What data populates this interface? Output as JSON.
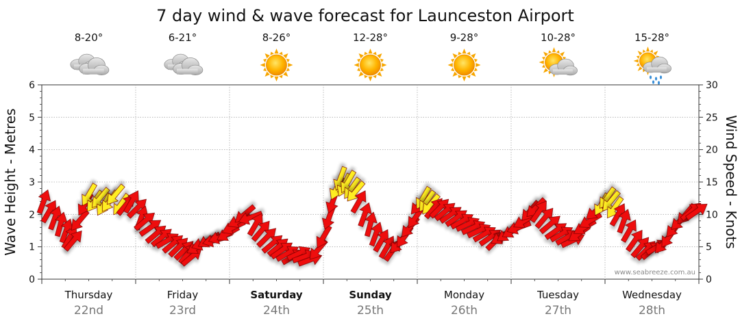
{
  "chart_data": {
    "type": "line",
    "title": "7 day wind & wave forecast for Launceston Airport",
    "ylabel_left": "Wave Height - Metres",
    "ylabel_right": "Wind Speed - Knots",
    "ylim_left": [
      0,
      6
    ],
    "ylim_right": [
      0,
      30
    ],
    "yticks_left": [
      "0",
      "1",
      "2",
      "3",
      "4",
      "5",
      "6"
    ],
    "yticks_right": [
      "0",
      "5",
      "10",
      "15",
      "20",
      "25",
      "30"
    ],
    "grid": "dotted",
    "watermark": "www.seabreeze.com.au",
    "days": [
      {
        "name": "Thursday",
        "date": "22nd",
        "temp": "8-20°",
        "icon": "cloudy-icon",
        "bold": false
      },
      {
        "name": "Friday",
        "date": "23rd",
        "temp": "6-21°",
        "icon": "cloudy-icon",
        "bold": false
      },
      {
        "name": "Saturday",
        "date": "24th",
        "temp": "8-26°",
        "icon": "sun-icon",
        "bold": true
      },
      {
        "name": "Sunday",
        "date": "25th",
        "temp": "12-28°",
        "icon": "sun-icon",
        "bold": true
      },
      {
        "name": "Monday",
        "date": "26th",
        "temp": "9-28°",
        "icon": "sun-icon",
        "bold": false
      },
      {
        "name": "Tuesday",
        "date": "27th",
        "temp": "10-28°",
        "icon": "partly-cloudy-icon",
        "bold": false
      },
      {
        "name": "Wednesday",
        "date": "28th",
        "temp": "15-28°",
        "icon": "showers-icon",
        "bold": false
      }
    ],
    "series": [
      {
        "name": "Wind Speed - Knots",
        "color_strong": "#ee1111",
        "color_light": "#ffee22",
        "x_unit": "day index (0 = Thursday 00:00, 7 = end of Wednesday)",
        "points": [
          {
            "t": 0.02,
            "v": 12.0,
            "dir": 200,
            "c": "red"
          },
          {
            "t": 0.08,
            "v": 10.5,
            "dir": 210,
            "c": "red"
          },
          {
            "t": 0.14,
            "v": 9.5,
            "dir": 200,
            "c": "red"
          },
          {
            "t": 0.2,
            "v": 8.5,
            "dir": 195,
            "c": "red"
          },
          {
            "t": 0.26,
            "v": 7.5,
            "dir": 200,
            "c": "red"
          },
          {
            "t": 0.3,
            "v": 6.5,
            "dir": 210,
            "c": "red"
          },
          {
            "t": 0.34,
            "v": 6.0,
            "dir": 220,
            "c": "red"
          },
          {
            "t": 0.4,
            "v": 9.0,
            "dir": 40,
            "c": "red"
          },
          {
            "t": 0.46,
            "v": 11.5,
            "dir": 30,
            "c": "red"
          },
          {
            "t": 0.5,
            "v": 13.0,
            "dir": 30,
            "c": "yellow"
          },
          {
            "t": 0.56,
            "v": 12.0,
            "dir": 35,
            "c": "yellow"
          },
          {
            "t": 0.62,
            "v": 12.5,
            "dir": 40,
            "c": "yellow"
          },
          {
            "t": 0.66,
            "v": 11.5,
            "dir": 30,
            "c": "yellow"
          },
          {
            "t": 0.72,
            "v": 12.0,
            "dir": 35,
            "c": "yellow"
          },
          {
            "t": 0.78,
            "v": 13.0,
            "dir": 40,
            "c": "yellow"
          },
          {
            "t": 0.84,
            "v": 11.5,
            "dir": 35,
            "c": "yellow"
          },
          {
            "t": 0.9,
            "v": 11.5,
            "dir": 220,
            "c": "red"
          },
          {
            "t": 0.96,
            "v": 12.0,
            "dir": 210,
            "c": "red"
          },
          {
            "t": 1.02,
            "v": 11.0,
            "dir": 225,
            "c": "red"
          },
          {
            "t": 1.06,
            "v": 9.5,
            "dir": 200,
            "c": "red"
          },
          {
            "t": 1.1,
            "v": 9.0,
            "dir": 230,
            "c": "red"
          },
          {
            "t": 1.16,
            "v": 8.0,
            "dir": 235,
            "c": "red"
          },
          {
            "t": 1.22,
            "v": 7.0,
            "dir": 230,
            "c": "red"
          },
          {
            "t": 1.28,
            "v": 6.5,
            "dir": 230,
            "c": "red"
          },
          {
            "t": 1.34,
            "v": 6.0,
            "dir": 240,
            "c": "red"
          },
          {
            "t": 1.4,
            "v": 5.5,
            "dir": 230,
            "c": "red"
          },
          {
            "t": 1.46,
            "v": 5.0,
            "dir": 225,
            "c": "red"
          },
          {
            "t": 1.52,
            "v": 4.5,
            "dir": 225,
            "c": "red"
          },
          {
            "t": 1.56,
            "v": 4.0,
            "dir": 220,
            "c": "red"
          },
          {
            "t": 1.6,
            "v": 3.5,
            "dir": 230,
            "c": "red"
          },
          {
            "t": 1.66,
            "v": 5.0,
            "dir": 60,
            "c": "red"
          },
          {
            "t": 1.72,
            "v": 5.5,
            "dir": 70,
            "c": "red"
          },
          {
            "t": 1.78,
            "v": 6.0,
            "dir": 60,
            "c": "red"
          },
          {
            "t": 1.84,
            "v": 6.0,
            "dir": 75,
            "c": "red"
          },
          {
            "t": 1.9,
            "v": 6.5,
            "dir": 70,
            "c": "red"
          },
          {
            "t": 1.98,
            "v": 7.0,
            "dir": 60,
            "c": "red"
          },
          {
            "t": 2.04,
            "v": 8.0,
            "dir": 65,
            "c": "red"
          },
          {
            "t": 2.1,
            "v": 9.0,
            "dir": 65,
            "c": "red"
          },
          {
            "t": 2.16,
            "v": 10.0,
            "dir": 50,
            "c": "red"
          },
          {
            "t": 2.22,
            "v": 9.5,
            "dir": 70,
            "c": "red"
          },
          {
            "t": 2.28,
            "v": 8.5,
            "dir": 210,
            "c": "red"
          },
          {
            "t": 2.34,
            "v": 7.5,
            "dir": 220,
            "c": "red"
          },
          {
            "t": 2.4,
            "v": 6.5,
            "dir": 225,
            "c": "red"
          },
          {
            "t": 2.46,
            "v": 5.5,
            "dir": 230,
            "c": "red"
          },
          {
            "t": 2.52,
            "v": 5.0,
            "dir": 230,
            "c": "red"
          },
          {
            "t": 2.56,
            "v": 4.5,
            "dir": 235,
            "c": "red"
          },
          {
            "t": 2.62,
            "v": 4.0,
            "dir": 240,
            "c": "red"
          },
          {
            "t": 2.68,
            "v": 3.5,
            "dir": 240,
            "c": "red"
          },
          {
            "t": 2.74,
            "v": 4.0,
            "dir": 245,
            "c": "red"
          },
          {
            "t": 2.8,
            "v": 3.5,
            "dir": 250,
            "c": "red"
          },
          {
            "t": 2.86,
            "v": 3.0,
            "dir": 250,
            "c": "red"
          },
          {
            "t": 2.94,
            "v": 4.5,
            "dir": 40,
            "c": "red"
          },
          {
            "t": 3.0,
            "v": 6.5,
            "dir": 30,
            "c": "red"
          },
          {
            "t": 3.06,
            "v": 9.5,
            "dir": 20,
            "c": "red"
          },
          {
            "t": 3.1,
            "v": 12.0,
            "dir": 20,
            "c": "red"
          },
          {
            "t": 3.14,
            "v": 14.0,
            "dir": 25,
            "c": "yellow"
          },
          {
            "t": 3.18,
            "v": 15.5,
            "dir": 20,
            "c": "yellow"
          },
          {
            "t": 3.22,
            "v": 14.5,
            "dir": 25,
            "c": "yellow"
          },
          {
            "t": 3.26,
            "v": 15.0,
            "dir": 30,
            "c": "yellow"
          },
          {
            "t": 3.3,
            "v": 14.0,
            "dir": 35,
            "c": "yellow"
          },
          {
            "t": 3.34,
            "v": 13.5,
            "dir": 40,
            "c": "yellow"
          },
          {
            "t": 3.38,
            "v": 12.0,
            "dir": 210,
            "c": "red"
          },
          {
            "t": 3.44,
            "v": 10.0,
            "dir": 200,
            "c": "red"
          },
          {
            "t": 3.5,
            "v": 8.5,
            "dir": 195,
            "c": "red"
          },
          {
            "t": 3.56,
            "v": 7.0,
            "dir": 200,
            "c": "red"
          },
          {
            "t": 3.62,
            "v": 6.0,
            "dir": 210,
            "c": "red"
          },
          {
            "t": 3.68,
            "v": 5.0,
            "dir": 210,
            "c": "red"
          },
          {
            "t": 3.74,
            "v": 4.5,
            "dir": 215,
            "c": "red"
          },
          {
            "t": 3.8,
            "v": 5.5,
            "dir": 40,
            "c": "red"
          },
          {
            "t": 3.86,
            "v": 6.5,
            "dir": 35,
            "c": "red"
          },
          {
            "t": 3.92,
            "v": 8.0,
            "dir": 40,
            "c": "red"
          },
          {
            "t": 3.98,
            "v": 9.5,
            "dir": 35,
            "c": "red"
          },
          {
            "t": 4.02,
            "v": 11.5,
            "dir": 40,
            "c": "red"
          },
          {
            "t": 4.06,
            "v": 12.5,
            "dir": 30,
            "c": "yellow"
          },
          {
            "t": 4.1,
            "v": 12.0,
            "dir": 35,
            "c": "yellow"
          },
          {
            "t": 4.14,
            "v": 11.5,
            "dir": 40,
            "c": "yellow"
          },
          {
            "t": 4.18,
            "v": 11.0,
            "dir": 220,
            "c": "red"
          },
          {
            "t": 4.24,
            "v": 11.0,
            "dir": 225,
            "c": "red"
          },
          {
            "t": 4.3,
            "v": 10.5,
            "dir": 230,
            "c": "red"
          },
          {
            "t": 4.36,
            "v": 10.0,
            "dir": 235,
            "c": "red"
          },
          {
            "t": 4.42,
            "v": 9.5,
            "dir": 235,
            "c": "red"
          },
          {
            "t": 4.48,
            "v": 9.0,
            "dir": 240,
            "c": "red"
          },
          {
            "t": 4.54,
            "v": 8.5,
            "dir": 245,
            "c": "red"
          },
          {
            "t": 4.6,
            "v": 8.0,
            "dir": 245,
            "c": "red"
          },
          {
            "t": 4.66,
            "v": 7.5,
            "dir": 245,
            "c": "red"
          },
          {
            "t": 4.72,
            "v": 7.0,
            "dir": 240,
            "c": "red"
          },
          {
            "t": 4.78,
            "v": 6.5,
            "dir": 235,
            "c": "red"
          },
          {
            "t": 4.84,
            "v": 6.0,
            "dir": 225,
            "c": "red"
          },
          {
            "t": 4.9,
            "v": 6.5,
            "dir": 60,
            "c": "red"
          },
          {
            "t": 4.96,
            "v": 7.0,
            "dir": 55,
            "c": "red"
          },
          {
            "t": 5.02,
            "v": 7.5,
            "dir": 60,
            "c": "red"
          },
          {
            "t": 5.08,
            "v": 8.0,
            "dir": 70,
            "c": "red"
          },
          {
            "t": 5.14,
            "v": 9.0,
            "dir": 60,
            "c": "red"
          },
          {
            "t": 5.2,
            "v": 10.5,
            "dir": 40,
            "c": "red"
          },
          {
            "t": 5.26,
            "v": 11.0,
            "dir": 45,
            "c": "red"
          },
          {
            "t": 5.3,
            "v": 10.5,
            "dir": 215,
            "c": "red"
          },
          {
            "t": 5.36,
            "v": 9.5,
            "dir": 220,
            "c": "red"
          },
          {
            "t": 5.42,
            "v": 8.5,
            "dir": 230,
            "c": "red"
          },
          {
            "t": 5.48,
            "v": 7.5,
            "dir": 235,
            "c": "red"
          },
          {
            "t": 5.54,
            "v": 7.0,
            "dir": 240,
            "c": "red"
          },
          {
            "t": 5.6,
            "v": 6.5,
            "dir": 240,
            "c": "red"
          },
          {
            "t": 5.66,
            "v": 6.0,
            "dir": 245,
            "c": "red"
          },
          {
            "t": 5.72,
            "v": 7.0,
            "dir": 55,
            "c": "red"
          },
          {
            "t": 5.78,
            "v": 8.0,
            "dir": 60,
            "c": "red"
          },
          {
            "t": 5.84,
            "v": 9.0,
            "dir": 60,
            "c": "red"
          },
          {
            "t": 5.9,
            "v": 10.5,
            "dir": 50,
            "c": "red"
          },
          {
            "t": 5.96,
            "v": 11.5,
            "dir": 30,
            "c": "yellow"
          },
          {
            "t": 6.02,
            "v": 12.5,
            "dir": 35,
            "c": "yellow"
          },
          {
            "t": 6.06,
            "v": 12.0,
            "dir": 40,
            "c": "yellow"
          },
          {
            "t": 6.1,
            "v": 11.0,
            "dir": 35,
            "c": "yellow"
          },
          {
            "t": 6.14,
            "v": 10.0,
            "dir": 210,
            "c": "red"
          },
          {
            "t": 6.2,
            "v": 9.0,
            "dir": 200,
            "c": "red"
          },
          {
            "t": 6.26,
            "v": 7.5,
            "dir": 210,
            "c": "red"
          },
          {
            "t": 6.32,
            "v": 6.0,
            "dir": 215,
            "c": "red"
          },
          {
            "t": 6.38,
            "v": 5.0,
            "dir": 220,
            "c": "red"
          },
          {
            "t": 6.44,
            "v": 4.5,
            "dir": 225,
            "c": "red"
          },
          {
            "t": 6.5,
            "v": 4.5,
            "dir": 230,
            "c": "red"
          },
          {
            "t": 6.56,
            "v": 5.0,
            "dir": 240,
            "c": "red"
          },
          {
            "t": 6.62,
            "v": 5.5,
            "dir": 40,
            "c": "red"
          },
          {
            "t": 6.68,
            "v": 6.5,
            "dir": 35,
            "c": "red"
          },
          {
            "t": 6.74,
            "v": 8.0,
            "dir": 40,
            "c": "red"
          },
          {
            "t": 6.8,
            "v": 9.0,
            "dir": 45,
            "c": "red"
          },
          {
            "t": 6.86,
            "v": 10.0,
            "dir": 40,
            "c": "red"
          },
          {
            "t": 6.92,
            "v": 10.5,
            "dir": 230,
            "c": "red"
          },
          {
            "t": 6.98,
            "v": 10.5,
            "dir": 235,
            "c": "red"
          }
        ]
      }
    ]
  }
}
